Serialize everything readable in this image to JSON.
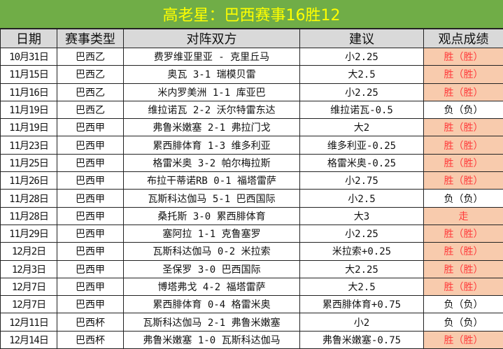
{
  "title": "高老星：巴西赛事16胜12",
  "headers": [
    "日期",
    "赛事类型",
    "对阵双方",
    "建议",
    "观点成绩"
  ],
  "colors": {
    "title_bg": "#70ad47",
    "title_text": "#ffff00",
    "header_bg": "#d9d9d9",
    "win_bg": "#f8cbad",
    "win_text": "#ff3b3b"
  },
  "rows": [
    {
      "date": "10月31日",
      "league": "巴西乙",
      "match": "费罗维亚里亚 - 克里丘马",
      "tip": "小2.25",
      "result": "胜（胜）",
      "highlight": true
    },
    {
      "date": "11月15日",
      "league": "巴西乙",
      "match": "奥瓦 3-1 瑞模贝雷",
      "tip": "大2.5",
      "result": "胜（胜）",
      "highlight": true
    },
    {
      "date": "11月16日",
      "league": "巴西乙",
      "match": "米内罗美洲 1-1 库亚巴",
      "tip": "小2.25",
      "result": "胜（胜）",
      "highlight": true
    },
    {
      "date": "11月19日",
      "league": "巴西乙",
      "match": "维拉诺瓦 2-2 沃尔特雷东达",
      "tip": "维拉诺瓦-0.5",
      "result": "负（负）",
      "highlight": false
    },
    {
      "date": "11月19日",
      "league": "巴西甲",
      "match": "弗鲁米嫩塞 2-1 弗拉门戈",
      "tip": "大2",
      "result": "胜（胜）",
      "highlight": true
    },
    {
      "date": "11月23日",
      "league": "巴西甲",
      "match": "累西腓体育 1-3 维多利亚",
      "tip": "维多利亚-0.25",
      "result": "胜（胜）",
      "highlight": true
    },
    {
      "date": "11月25日",
      "league": "巴西甲",
      "match": "格雷米奥 3-2 帕尔梅拉斯",
      "tip": "格雷米奥-0.25",
      "result": "胜（胜）",
      "highlight": true
    },
    {
      "date": "11月26日",
      "league": "巴西甲",
      "match": "布拉干蒂诺RB 0-1 福塔雷萨",
      "tip": "小2.75",
      "result": "胜（胜）",
      "highlight": true
    },
    {
      "date": "11月28日",
      "league": "巴西甲",
      "match": "瓦斯科达伽马 5-1 巴西国际",
      "tip": "小2.5",
      "result": "负（负）",
      "highlight": false
    },
    {
      "date": "11月28日",
      "league": "巴西甲",
      "match": "桑托斯 3-0 累西腓体育",
      "tip": "大3",
      "result": "走",
      "highlight": true
    },
    {
      "date": "11月29日",
      "league": "巴西甲",
      "match": "塞阿拉 1-1 克鲁塞罗",
      "tip": "小2.25",
      "result": "胜（胜）",
      "highlight": true
    },
    {
      "date": "12月2日",
      "league": "巴西甲",
      "match": "瓦斯科达伽马 0-2 米拉索",
      "tip": "米拉索+0.25",
      "result": "胜（胜）",
      "highlight": true
    },
    {
      "date": "12月3日",
      "league": "巴西甲",
      "match": "圣保罗 3-0 巴西国际",
      "tip": "大2.25",
      "result": "胜（胜）",
      "highlight": true
    },
    {
      "date": "12月7日",
      "league": "巴西甲",
      "match": "博塔弗戈 4-2 福塔雷萨",
      "tip": "大2.5",
      "result": "胜（胜）",
      "highlight": true
    },
    {
      "date": "12月7日",
      "league": "巴西甲",
      "match": "累西腓体育 0-4 格雷米奥",
      "tip": "累西腓体育+0.75",
      "result": "负（负）",
      "highlight": false
    },
    {
      "date": "12月11日",
      "league": "巴西杯",
      "match": "瓦斯科达伽马 2-1 弗鲁米嫩塞",
      "tip": "小2",
      "result": "负（负）",
      "highlight": false
    },
    {
      "date": "12月14日",
      "league": "巴西杯",
      "match": "弗鲁米嫩塞 1-0 瓦斯科达伽马",
      "tip": "弗鲁米嫩塞-0.75",
      "result": "胜（胜）",
      "highlight": true
    }
  ]
}
